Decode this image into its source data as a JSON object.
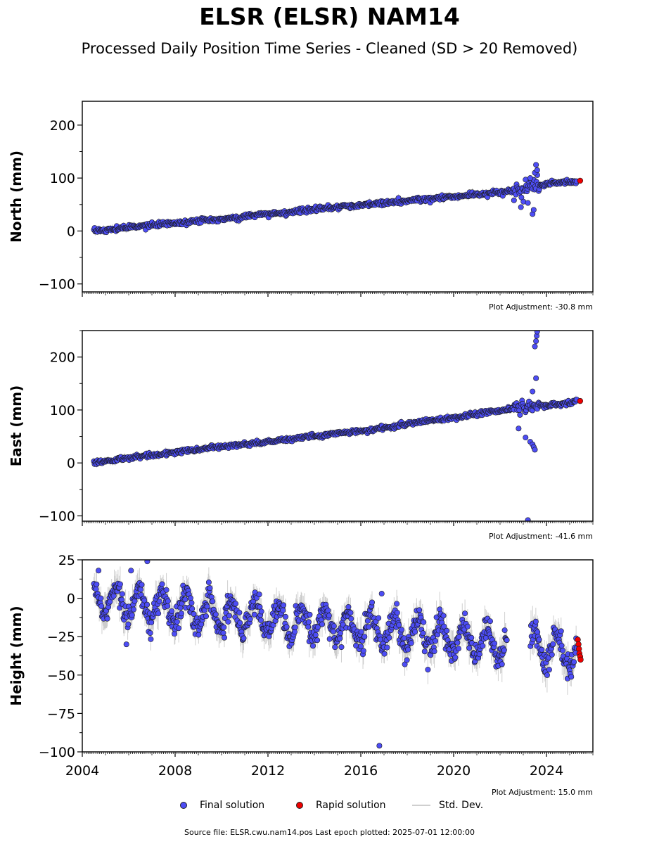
{
  "title": "ELSR (ELSR) NAM14",
  "subtitle": "Processed Daily Position Time Series - Cleaned (SD > 20 Removed)",
  "colors": {
    "final": "#4d4df5",
    "rapid": "#ee0000",
    "std": "#bbbbbb",
    "edge": "#1a1a1a"
  },
  "legend": {
    "final": "Final solution",
    "rapid": "Rapid solution",
    "std": "Std. Dev."
  },
  "source": "Source file: ELSR.cwu.nam14.pos  Last epoch plotted: 2025-07-01 12:00:00",
  "chart_data": [
    {
      "type": "scatter",
      "ylabel": "North (mm)",
      "ylim": [
        -115,
        245
      ],
      "yticks": [
        -100,
        0,
        100,
        200
      ],
      "yticklabels": [
        "−100",
        "0",
        "100",
        "200"
      ],
      "xlim": [
        2004.0,
        2026.0
      ],
      "adjustment": "Plot Adjustment: -30.8 mm",
      "series": [
        {
          "name": "Final solution",
          "x": [
            2004.5,
            2005.5,
            2006.5,
            2007.5,
            2008.5,
            2009.5,
            2010.5,
            2011.5,
            2012.5,
            2013.5,
            2014.5,
            2015.5,
            2016.5,
            2017.5,
            2018.5,
            2019.5,
            2020.5,
            2021.5,
            2022.5,
            2023.0,
            2023.3,
            2023.5,
            2023.8,
            2024.0,
            2024.5,
            2025.0,
            2025.3
          ],
          "y": [
            0,
            4,
            9,
            13,
            17,
            21,
            25,
            30,
            34,
            39,
            43,
            47,
            50,
            55,
            59,
            63,
            67,
            71,
            76,
            80,
            83,
            86,
            87,
            88,
            91,
            93,
            95
          ]
        },
        {
          "name": "Rapid solution",
          "x": [
            2025.45
          ],
          "y": [
            95
          ]
        }
      ],
      "outliers_x": [
        2022.6,
        2022.9,
        2023.1,
        2023.3,
        2023.4,
        2023.5,
        2023.55,
        2023.6,
        2023.2,
        2023.45
      ],
      "outliers_y": [
        58,
        45,
        97,
        100,
        32,
        110,
        125,
        115,
        53,
        40
      ]
    },
    {
      "type": "scatter",
      "ylabel": "East (mm)",
      "ylim": [
        -110,
        250
      ],
      "yticks": [
        -100,
        0,
        100,
        200
      ],
      "yticklabels": [
        "−100",
        "0",
        "100",
        "200"
      ],
      "xlim": [
        2004.0,
        2026.0
      ],
      "adjustment": "Plot Adjustment: -41.6 mm",
      "series": [
        {
          "name": "Final solution",
          "x": [
            2004.5,
            2005.5,
            2006.5,
            2007.5,
            2008.5,
            2009.5,
            2010.5,
            2011.5,
            2012.5,
            2013.5,
            2014.5,
            2015.5,
            2016.5,
            2017.5,
            2018.5,
            2019.5,
            2020.5,
            2021.5,
            2022.5,
            2023.0,
            2023.5,
            2024.0,
            2024.5,
            2025.0,
            2025.3
          ],
          "y": [
            0,
            6,
            12,
            18,
            23,
            29,
            34,
            37,
            42,
            48,
            53,
            58,
            63,
            70,
            77,
            83,
            89,
            96,
            103,
            105,
            106,
            108,
            110,
            113,
            116
          ]
        },
        {
          "name": "Rapid solution",
          "x": [
            2025.45
          ],
          "y": [
            117
          ]
        }
      ],
      "outliers_x": [
        2022.8,
        2023.1,
        2023.3,
        2023.4,
        2023.45,
        2023.5,
        2023.55,
        2023.58,
        2023.6,
        2023.5,
        2023.55,
        2023.4,
        2023.2
      ],
      "outliers_y": [
        65,
        48,
        40,
        35,
        30,
        25,
        230,
        240,
        248,
        220,
        160,
        135,
        -108
      ]
    },
    {
      "type": "scatter",
      "ylabel": "Height (mm)",
      "ylim": [
        -100,
        25
      ],
      "yticks": [
        -100,
        -75,
        -50,
        -25,
        0,
        25
      ],
      "yticklabels": [
        "−100",
        "−75",
        "−50",
        "−25",
        "0",
        "25"
      ],
      "xlim": [
        2004.0,
        2026.0
      ],
      "xticks": [
        2004,
        2008,
        2012,
        2016,
        2020,
        2024
      ],
      "xticklabels": [
        "2004",
        "2008",
        "2012",
        "2016",
        "2020",
        "2024"
      ],
      "adjustment": "Plot Adjustment: 15.0 mm",
      "trend": [
        -1,
        -35
      ],
      "seasonal_amplitude": 10,
      "gap": [
        2022.3,
        2023.3
      ],
      "series": [
        {
          "name": "Final solution",
          "x_range": [
            2004.5,
            2025.3
          ]
        },
        {
          "name": "Rapid solution",
          "x": [
            2025.35,
            2025.38,
            2025.4,
            2025.42,
            2025.45,
            2025.47
          ],
          "y": [
            -27,
            -30,
            -33,
            -36,
            -38,
            -40
          ]
        }
      ],
      "outliers_x": [
        2006.8,
        2016.9,
        2016.8,
        2004.7,
        2006.1,
        2005.9
      ],
      "outliers_y": [
        24,
        3,
        -96,
        18,
        18,
        -30
      ]
    }
  ]
}
